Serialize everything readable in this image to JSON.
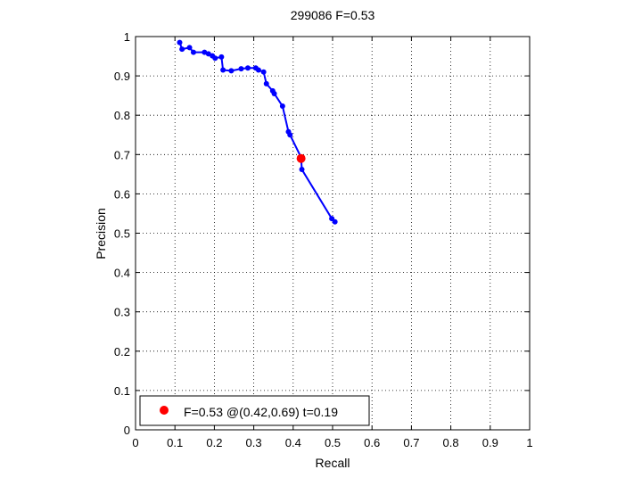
{
  "chart_data": {
    "type": "line",
    "title": "299086 F=0.53",
    "xlabel": "Recall",
    "ylabel": "Precision",
    "xlim": [
      0,
      1
    ],
    "ylim": [
      0,
      1
    ],
    "grid": true,
    "xticks": [
      "0",
      "0.1",
      "0.2",
      "0.3",
      "0.4",
      "0.5",
      "0.6",
      "0.7",
      "0.8",
      "0.9",
      "1"
    ],
    "yticks": [
      "0",
      "0.1",
      "0.2",
      "0.3",
      "0.4",
      "0.5",
      "0.6",
      "0.7",
      "0.8",
      "0.9",
      "1"
    ],
    "series": [
      {
        "color": "#0000ff",
        "x": [
          0.112,
          0.118,
          0.137,
          0.147,
          0.175,
          0.185,
          0.195,
          0.202,
          0.218,
          0.222,
          0.243,
          0.268,
          0.285,
          0.305,
          0.312,
          0.325,
          0.332,
          0.348,
          0.352,
          0.373,
          0.388,
          0.392,
          0.42,
          0.422,
          0.498,
          0.506
        ],
        "y": [
          0.985,
          0.968,
          0.972,
          0.96,
          0.96,
          0.956,
          0.951,
          0.945,
          0.948,
          0.915,
          0.913,
          0.918,
          0.92,
          0.92,
          0.915,
          0.91,
          0.88,
          0.862,
          0.855,
          0.823,
          0.758,
          0.75,
          0.693,
          0.662,
          0.537,
          0.529
        ]
      }
    ],
    "highlight": {
      "x": 0.42,
      "y": 0.69,
      "color": "#ff0000"
    },
    "legend": {
      "position": "bottom-left",
      "label": "F=0.53 @(0.42,0.69) t=0.19"
    }
  }
}
